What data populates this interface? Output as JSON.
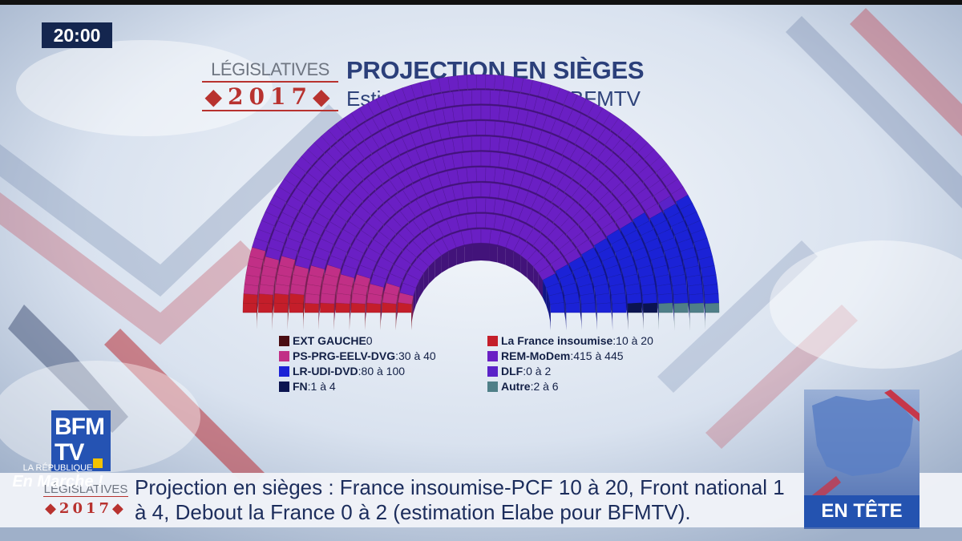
{
  "clock": "20:00",
  "header": {
    "logo_word": "LÉGISLATIVES",
    "logo_year": "◆2017◆",
    "title": "PROJECTION EN SIÈGES",
    "subtitle": "Estimation ELABE pour BFMTV"
  },
  "chart_data": {
    "type": "parliament",
    "title": "PROJECTION EN SIÈGES",
    "subtitle": "Estimation ELABE pour BFMTV",
    "total_seats": 577,
    "arc_order": [
      "EXT GAUCHE",
      "La France insoumise",
      "PS-PRG-EELV-DVG",
      "REM-MoDem",
      "DLF",
      "LR-UDI-DVD",
      "FN",
      "Autre"
    ],
    "parties": [
      {
        "name": "EXT GAUCHE",
        "label": "0",
        "min": 0,
        "max": 0,
        "color": "#4a0d12"
      },
      {
        "name": "La France insoumise",
        "label": "10 à 20",
        "min": 10,
        "max": 20,
        "color": "#c41e2a"
      },
      {
        "name": "PS-PRG-EELV-DVG",
        "label": "30 à 40",
        "min": 30,
        "max": 40,
        "color": "#c12f86"
      },
      {
        "name": "REM-MoDem",
        "label": "415 à 445",
        "min": 415,
        "max": 445,
        "color": "#6a1fc4"
      },
      {
        "name": "LR-UDI-DVD",
        "label": "80 à 100",
        "min": 80,
        "max": 100,
        "color": "#1b22d6"
      },
      {
        "name": "DLF",
        "label": "0 à 2",
        "min": 0,
        "max": 2,
        "color": "#5a22c8"
      },
      {
        "name": "FN",
        "label": "1 à 4",
        "min": 1,
        "max": 4,
        "color": "#0b1450"
      },
      {
        "name": "Autre",
        "label": "2 à 6",
        "min": 2,
        "max": 6,
        "color": "#4f7f88"
      }
    ]
  },
  "legend": {
    "left": [
      {
        "name": "EXT GAUCHE",
        "value": " 0",
        "color": "#4a0d12"
      },
      {
        "name": "PS-PRG-EELV-DVG",
        "value": ":30 à 40",
        "color": "#c12f86"
      },
      {
        "name": "LR-UDI-DVD",
        "value": ":80 à 100",
        "color": "#1b22d6"
      },
      {
        "name": "FN",
        "value": ":1 à 4",
        "color": "#0b1450"
      }
    ],
    "right": [
      {
        "name": "La France insoumise",
        "value": ":10 à 20",
        "color": "#c41e2a"
      },
      {
        "name": "REM-MoDem",
        "value": ":415 à 445",
        "color": "#6a1fc4"
      },
      {
        "name": "DLF",
        "value": ":0 à 2",
        "color": "#5a22c8"
      },
      {
        "name": "Autre",
        "value": ":2 à 6",
        "color": "#4f7f88"
      }
    ]
  },
  "channel_logo": {
    "line1": "BFM",
    "line2": "TV"
  },
  "ticker": {
    "logo_word": "LÉGISLATIVES",
    "logo_year": "◆2017◆",
    "text": "Projection en sièges : France insoumise-PCF 10 à 20, Front national 1 à 4, Debout la France 0 à 2 (estimation Elabe pour BFMTV)."
  },
  "thumbnail": {
    "small_text": "LA RÉPUBLIQUE",
    "brand": "En Marche !",
    "banner": "EN TÊTE"
  }
}
